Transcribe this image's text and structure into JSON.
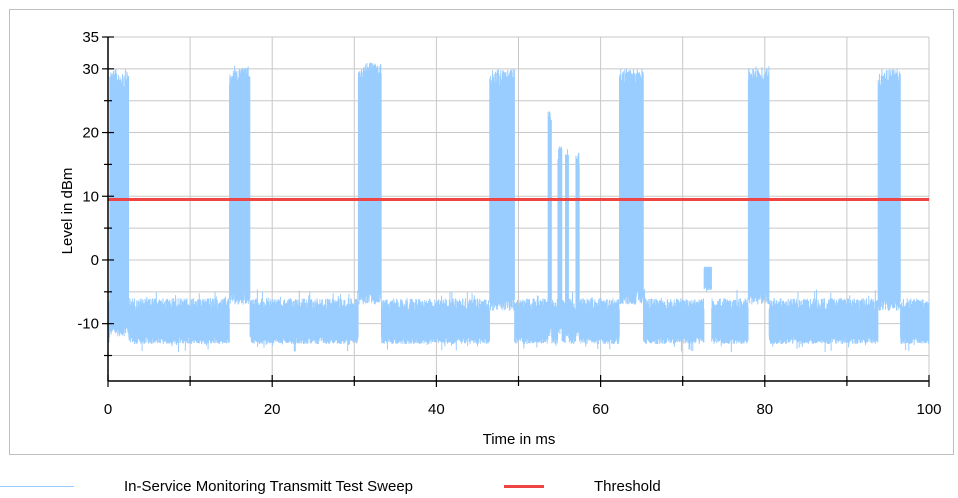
{
  "chart_data": {
    "type": "line",
    "title": "",
    "xlabel": "Time in ms",
    "ylabel": "Level in dBm",
    "xlim": [
      0,
      100
    ],
    "ylim": [
      -19,
      35
    ],
    "x_ticks": [
      0,
      20,
      40,
      60,
      80,
      100
    ],
    "x_minor_ticks": [
      10,
      30,
      50,
      70,
      90
    ],
    "y_ticks": [
      -10,
      0,
      10,
      20,
      30,
      35
    ],
    "y_minor_ticks": [
      -15,
      -5,
      5,
      15,
      25
    ],
    "grid": true,
    "legend_position": "bottom",
    "colors": {
      "sweep": "#99ccff",
      "threshold": "#ee4444",
      "grid": "#c8c8c8",
      "frame": "#bfbfbf"
    },
    "series": [
      {
        "name": "In-Service Monitoring Transmitt Test Sweep",
        "description_type": "noise_with_bursts",
        "noise_floor_range": [
          -12,
          -6
        ],
        "noise_spike_min": -14.5,
        "bursts": [
          {
            "start": 0.2,
            "end": 2.5,
            "min": -12,
            "max": 30
          },
          {
            "start": 14.8,
            "end": 17.3,
            "min": -7,
            "max": 30.5
          },
          {
            "start": 30.5,
            "end": 33.3,
            "min": -7,
            "max": 31
          },
          {
            "start": 46.5,
            "end": 49.5,
            "min": -8,
            "max": 30
          },
          {
            "start": 53.6,
            "end": 54.0,
            "min": -12,
            "max": 24
          },
          {
            "start": 54.8,
            "end": 55.3,
            "min": -12,
            "max": 18
          },
          {
            "start": 55.7,
            "end": 56.1,
            "min": -12,
            "max": 18
          },
          {
            "start": 57.0,
            "end": 57.4,
            "min": -12,
            "max": 17
          },
          {
            "start": 62.3,
            "end": 65.2,
            "min": -7,
            "max": 30
          },
          {
            "start": 72.6,
            "end": 73.5,
            "min": -5,
            "max": -1
          },
          {
            "start": 78.0,
            "end": 80.5,
            "min": -7,
            "max": 30.5
          },
          {
            "start": 93.8,
            "end": 96.5,
            "min": -8,
            "max": 30
          }
        ]
      },
      {
        "name": "Threshold",
        "x": [
          0,
          100
        ],
        "values": [
          9.5,
          9.5
        ]
      }
    ]
  }
}
